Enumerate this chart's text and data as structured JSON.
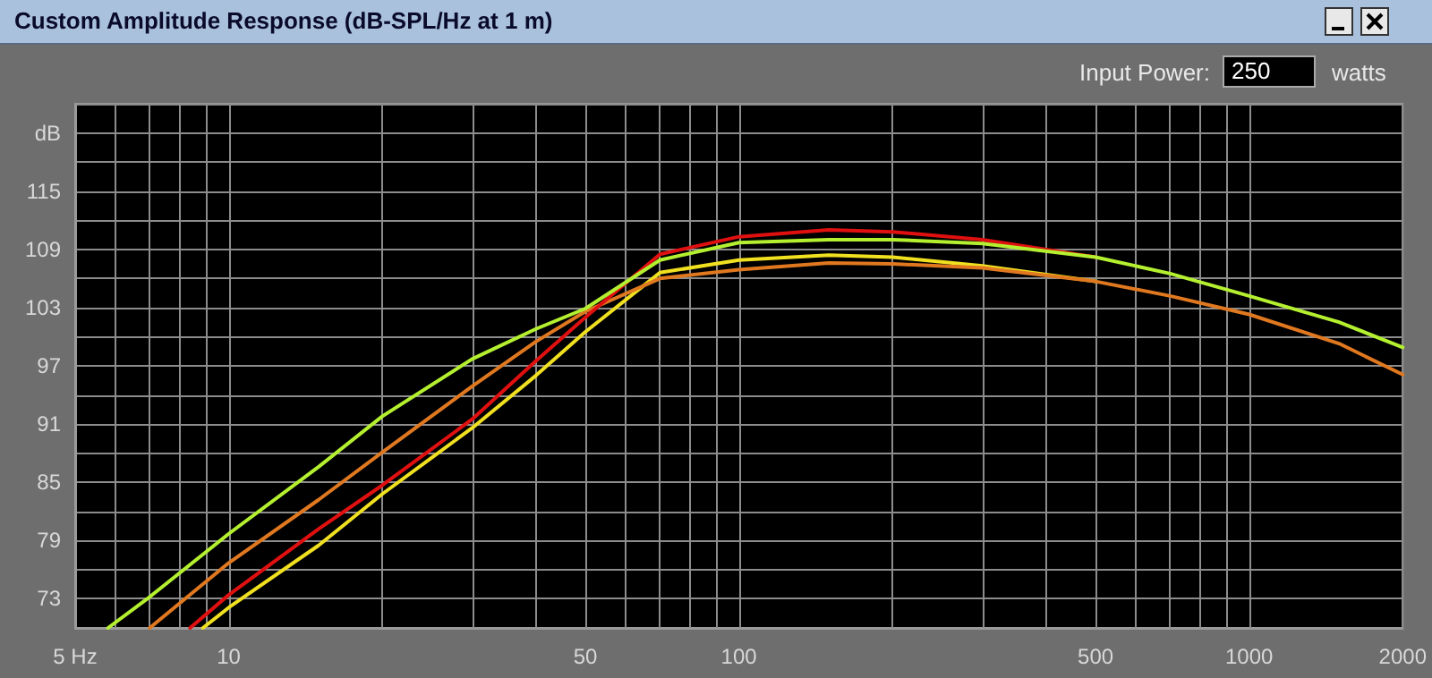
{
  "chart_data": {
    "type": "line",
    "title": "Custom Amplitude Response (dB-SPL/Hz at 1 m)",
    "annotations": [
      "Input Power:",
      "250",
      "watts"
    ],
    "log": "x",
    "grid": true,
    "xlim": [
      5,
      2000
    ],
    "ylim": [
      70,
      124
    ],
    "xticks": [
      {
        "value": 5,
        "label": "5 Hz"
      },
      {
        "value": 6,
        "label": null
      },
      {
        "value": 7,
        "label": null
      },
      {
        "value": 8,
        "label": null
      },
      {
        "value": 9,
        "label": null
      },
      10,
      {
        "value": 20,
        "label": null
      },
      {
        "value": 30,
        "label": null
      },
      {
        "value": 40,
        "label": null
      },
      50,
      {
        "value": 60,
        "label": null
      },
      {
        "value": 70,
        "label": null
      },
      {
        "value": 80,
        "label": null
      },
      {
        "value": 90,
        "label": null
      },
      100,
      {
        "value": 200,
        "label": null
      },
      {
        "value": 300,
        "label": null
      },
      {
        "value": 400,
        "label": null
      },
      500,
      {
        "value": 600,
        "label": null
      },
      {
        "value": 700,
        "label": null
      },
      {
        "value": 800,
        "label": null
      },
      {
        "value": 900,
        "label": null
      },
      1000,
      2000
    ],
    "yticks": [
      {
        "value": 70,
        "label": null
      },
      73,
      {
        "value": 76,
        "label": null
      },
      79,
      {
        "value": 82,
        "label": null
      },
      85,
      {
        "value": 88,
        "label": null
      },
      91,
      {
        "value": 94,
        "label": null
      },
      97,
      {
        "value": 100,
        "label": null
      },
      103,
      {
        "value": 106,
        "label": null
      },
      109,
      {
        "value": 112,
        "label": null
      },
      115,
      {
        "value": 118,
        "label": null
      },
      {
        "value": 121,
        "label": "dB"
      },
      {
        "value": 124,
        "label": null
      }
    ],
    "series": [
      {
        "color": "#f0e020",
        "x": [
          8.9,
          10,
          15,
          20,
          30,
          40,
          50,
          70,
          100,
          150,
          200,
          300,
          500
        ],
        "values": [
          70,
          72.1,
          78.5,
          83.8,
          90.6,
          96,
          100.5,
          106.6,
          107.9,
          108.4,
          108.2,
          107.3,
          105.7
        ]
      },
      {
        "color": "#e07820",
        "x": [
          7,
          10,
          15,
          20,
          30,
          40,
          50,
          70,
          100,
          150,
          200,
          300,
          500,
          700,
          1000,
          1500,
          2000
        ],
        "values": [
          70,
          76.7,
          83.2,
          88.1,
          94.9,
          99.5,
          102.6,
          106,
          106.9,
          107.6,
          107.5,
          107.1,
          105.7,
          104.2,
          102.3,
          99.3,
          96.1
        ]
      },
      {
        "color": "#e01010",
        "x": [
          8.4,
          10,
          15,
          20,
          30,
          40,
          50,
          70,
          100,
          150,
          200,
          300,
          500
        ],
        "values": [
          70,
          73.4,
          80.2,
          84.7,
          91.5,
          97.5,
          102,
          108.5,
          110.3,
          111,
          110.8,
          110,
          108.2
        ]
      },
      {
        "color": "#b4f030",
        "x": [
          5.8,
          7,
          10,
          15,
          20,
          30,
          40,
          50,
          70,
          100,
          150,
          200,
          300,
          500,
          700,
          1000,
          1500,
          2000
        ],
        "values": [
          70,
          73.2,
          79.7,
          86.6,
          91.8,
          97.7,
          100.8,
          102.9,
          107.9,
          109.7,
          110,
          110,
          109.6,
          108.2,
          106.5,
          104.2,
          101.5,
          98.9
        ]
      }
    ]
  }
}
